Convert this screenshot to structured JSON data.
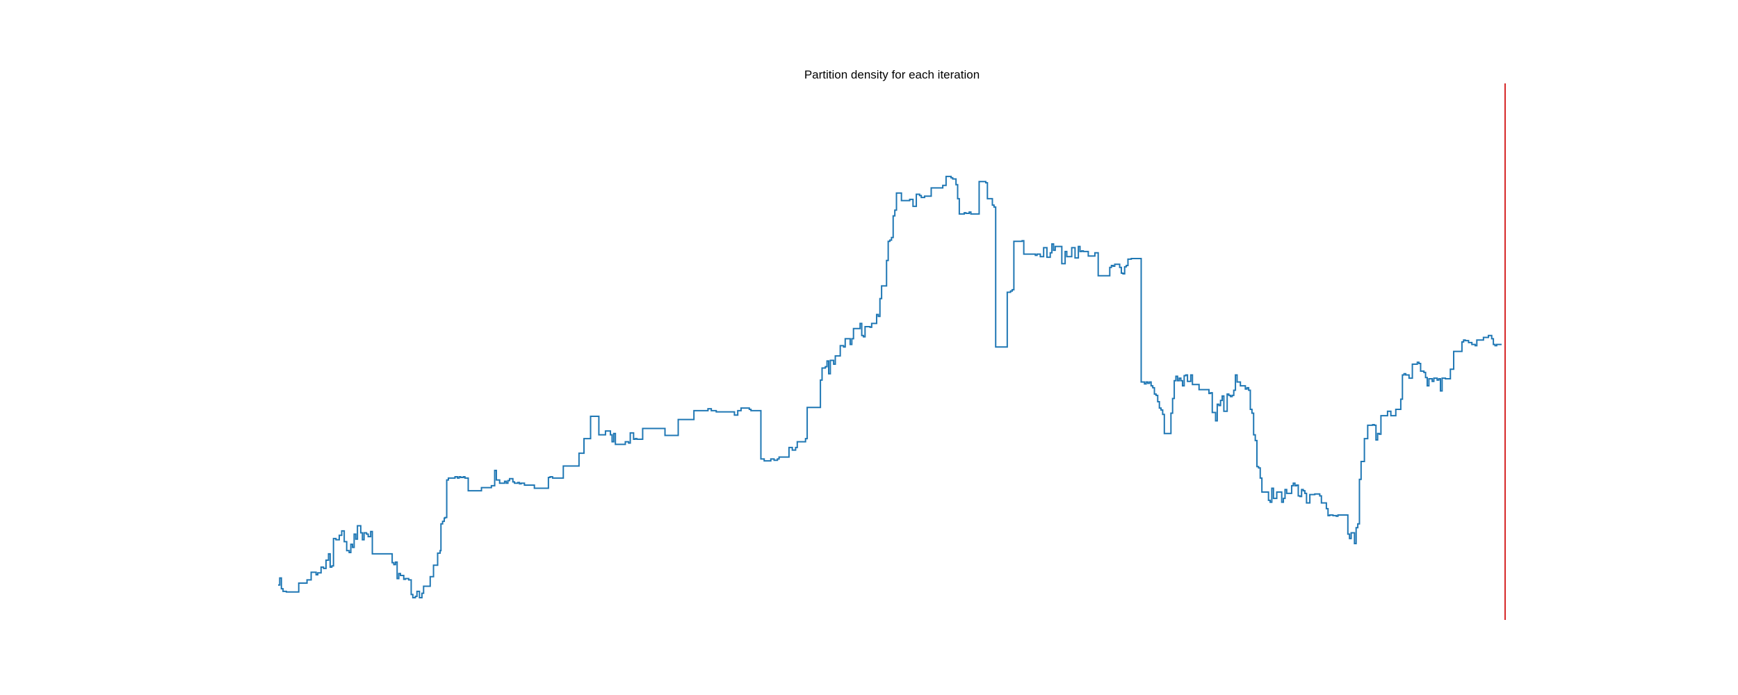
{
  "chart_data": {
    "type": "line",
    "title": "Partition density for each iteration",
    "xlabel": "",
    "ylabel": "",
    "axes_visible": false,
    "grid": false,
    "legend": "none",
    "step_style": "step",
    "colors": {
      "series": "#1f77b4",
      "marker_line": "#d62728",
      "background": "#ffffff"
    },
    "xlim": [
      0,
      1765
    ],
    "ylim": [
      0,
      770
    ],
    "series": [
      {
        "values": [
          [
            0,
            20
          ],
          [
            2,
            31
          ],
          [
            4,
            14
          ],
          [
            6,
            10
          ],
          [
            10,
            9
          ],
          [
            14,
            9
          ],
          [
            22,
            9
          ],
          [
            25,
            23
          ],
          [
            29,
            23
          ],
          [
            35,
            28
          ],
          [
            38,
            28
          ],
          [
            40,
            40
          ],
          [
            43,
            40
          ],
          [
            46,
            36
          ],
          [
            48,
            39
          ],
          [
            52,
            48
          ],
          [
            55,
            46
          ],
          [
            58,
            59
          ],
          [
            61,
            69
          ],
          [
            63,
            48
          ],
          [
            65,
            50
          ],
          [
            67,
            93
          ],
          [
            70,
            91
          ],
          [
            74,
            98
          ],
          [
            77,
            105
          ],
          [
            80,
            88
          ],
          [
            83,
            74
          ],
          [
            86,
            71
          ],
          [
            88,
            84
          ],
          [
            90,
            79
          ],
          [
            92,
            100
          ],
          [
            94,
            92
          ],
          [
            96,
            113
          ],
          [
            100,
            102
          ],
          [
            102,
            91
          ],
          [
            104,
            102
          ],
          [
            107,
            100
          ],
          [
            109,
            96
          ],
          [
            112,
            104
          ],
          [
            114,
            69
          ],
          [
            116,
            69
          ],
          [
            118,
            69
          ],
          [
            122,
            69
          ],
          [
            124,
            69
          ],
          [
            127,
            69
          ],
          [
            129,
            69
          ],
          [
            131,
            69
          ],
          [
            133,
            69
          ],
          [
            135,
            69
          ],
          [
            138,
            55
          ],
          [
            140,
            52
          ],
          [
            142,
            56
          ],
          [
            144,
            30
          ],
          [
            146,
            38
          ],
          [
            148,
            35
          ],
          [
            152,
            29
          ],
          [
            154,
            30
          ],
          [
            158,
            28
          ],
          [
            161,
            5
          ],
          [
            163,
            0
          ],
          [
            166,
            2
          ],
          [
            168,
            10
          ],
          [
            171,
            0
          ],
          [
            173,
            0
          ],
          [
            174,
            7
          ],
          [
            176,
            18
          ],
          [
            180,
            18
          ],
          [
            184,
            33
          ],
          [
            186,
            33
          ],
          [
            188,
            51
          ],
          [
            190,
            51
          ],
          [
            193,
            70
          ],
          [
            196,
            74
          ],
          [
            197,
            116
          ],
          [
            199,
            120
          ],
          [
            201,
            125
          ],
          [
            202,
            126
          ],
          [
            204,
            185
          ],
          [
            206,
            188
          ],
          [
            208,
            188
          ],
          [
            212,
            188
          ],
          [
            214,
            190
          ],
          [
            217,
            188
          ],
          [
            219,
            190
          ],
          [
            221,
            189
          ],
          [
            224,
            190
          ],
          [
            226,
            188
          ],
          [
            230,
            168
          ],
          [
            234,
            168
          ],
          [
            238,
            168
          ],
          [
            242,
            168
          ],
          [
            246,
            173
          ],
          [
            250,
            173
          ],
          [
            254,
            173
          ],
          [
            258,
            176
          ],
          [
            262,
            200
          ],
          [
            264,
            185
          ],
          [
            268,
            180
          ],
          [
            270,
            180
          ],
          [
            274,
            183
          ],
          [
            276,
            180
          ],
          [
            278,
            184
          ],
          [
            280,
            187
          ],
          [
            284,
            182
          ],
          [
            286,
            180
          ],
          [
            288,
            180
          ],
          [
            290,
            181
          ],
          [
            292,
            179
          ],
          [
            294,
            180
          ],
          [
            298,
            177
          ],
          [
            302,
            177
          ],
          [
            306,
            177
          ],
          [
            310,
            172
          ],
          [
            314,
            172
          ],
          [
            318,
            172
          ],
          [
            321,
            172
          ],
          [
            324,
            172
          ],
          [
            327,
            189
          ],
          [
            329,
            190
          ],
          [
            332,
            188
          ],
          [
            338,
            188
          ],
          [
            342,
            188
          ],
          [
            345,
            207
          ],
          [
            348,
            207
          ],
          [
            352,
            207
          ],
          [
            356,
            207
          ],
          [
            360,
            207
          ],
          [
            362,
            207
          ],
          [
            364,
            227
          ],
          [
            368,
            227
          ],
          [
            370,
            250
          ],
          [
            372,
            250
          ],
          [
            376,
            250
          ],
          [
            378,
            285
          ],
          [
            380,
            285
          ],
          [
            382,
            285
          ],
          [
            386,
            285
          ],
          [
            388,
            256
          ],
          [
            391,
            256
          ],
          [
            394,
            256
          ],
          [
            396,
            262
          ],
          [
            398,
            262
          ],
          [
            402,
            256
          ],
          [
            404,
            245
          ],
          [
            406,
            258
          ],
          [
            408,
            241
          ],
          [
            410,
            241
          ],
          [
            413,
            241
          ],
          [
            416,
            241
          ],
          [
            418,
            241
          ],
          [
            420,
            245
          ],
          [
            424,
            243
          ],
          [
            426,
            259
          ],
          [
            428,
            259
          ],
          [
            430,
            249
          ],
          [
            432,
            250
          ],
          [
            434,
            249
          ],
          [
            436,
            249
          ],
          [
            438,
            249
          ],
          [
            441,
            266
          ],
          [
            443,
            266
          ],
          [
            445,
            266
          ],
          [
            446,
            266
          ],
          [
            450,
            266
          ],
          [
            452,
            266
          ],
          [
            454,
            266
          ],
          [
            456,
            266
          ],
          [
            458,
            266
          ],
          [
            460,
            266
          ],
          [
            463,
            266
          ],
          [
            466,
            266
          ],
          [
            468,
            255
          ],
          [
            470,
            255
          ],
          [
            472,
            255
          ],
          [
            475,
            255
          ],
          [
            478,
            255
          ],
          [
            480,
            255
          ],
          [
            482,
            255
          ],
          [
            484,
            280
          ],
          [
            486,
            280
          ],
          [
            490,
            280
          ],
          [
            493,
            280
          ],
          [
            496,
            280
          ],
          [
            498,
            280
          ],
          [
            500,
            280
          ],
          [
            503,
            294
          ],
          [
            506,
            294
          ],
          [
            508,
            294
          ],
          [
            510,
            294
          ],
          [
            512,
            294
          ],
          [
            515,
            294
          ],
          [
            518,
            294
          ],
          [
            520,
            297
          ],
          [
            524,
            294
          ],
          [
            526,
            294
          ],
          [
            528,
            294
          ],
          [
            530,
            292
          ],
          [
            532,
            292
          ],
          [
            534,
            292
          ],
          [
            536,
            292
          ],
          [
            538,
            292
          ],
          [
            540,
            292
          ],
          [
            542,
            292
          ],
          [
            545,
            292
          ],
          [
            548,
            292
          ],
          [
            550,
            292
          ],
          [
            552,
            287
          ],
          [
            554,
            287
          ],
          [
            556,
            294
          ],
          [
            558,
            294
          ],
          [
            560,
            298
          ],
          [
            564,
            298
          ],
          [
            566,
            298
          ],
          [
            570,
            296
          ],
          [
            572,
            294
          ],
          [
            575,
            294
          ],
          [
            578,
            294
          ],
          [
            580,
            294
          ]
        ]
      }
    ],
    "marker_line_x": 1765
  }
}
